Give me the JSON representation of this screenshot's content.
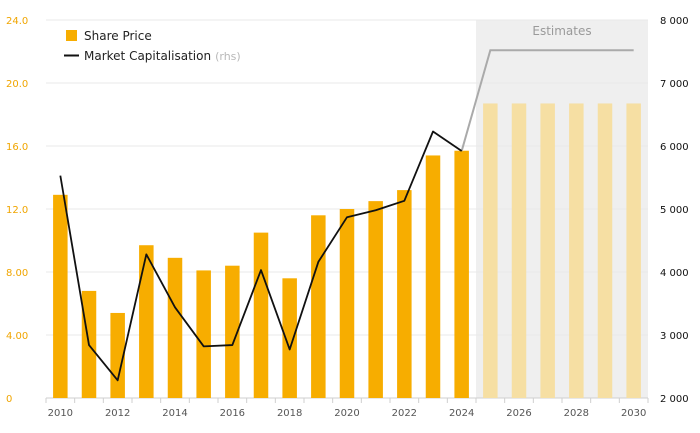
{
  "chart_data": {
    "type": "bar",
    "categories": [
      "2010",
      "2011",
      "2012",
      "2013",
      "2014",
      "2015",
      "2016",
      "2017",
      "2018",
      "2019",
      "2020",
      "2021",
      "2022",
      "2023",
      "2024",
      "2025",
      "2026",
      "2027",
      "2028",
      "2029",
      "2030"
    ],
    "x_tick_labels": [
      "2010",
      "2012",
      "2014",
      "2016",
      "2018",
      "2020",
      "2022",
      "2024",
      "2026",
      "2028",
      "2030"
    ],
    "series": [
      {
        "name": "Share Price",
        "kind": "bar",
        "axis": "left",
        "color": "#f7ad00",
        "estimate_color": "#f6dfa3",
        "values": [
          12.9,
          6.8,
          5.4,
          9.7,
          8.9,
          8.1,
          8.4,
          10.5,
          7.6,
          11.6,
          12.0,
          12.5,
          13.2,
          15.4,
          15.7,
          18.7,
          18.7,
          18.7,
          18.7,
          18.7,
          18.7
        ]
      },
      {
        "name": "Market Capitalisation",
        "name_note": "(rhs)",
        "kind": "line",
        "axis": "right",
        "color": "#111111",
        "estimate_color": "#aaaaaa",
        "x": [
          2010,
          2011,
          2012,
          2013,
          2014,
          2015,
          2016,
          2017,
          2018,
          2019,
          2020,
          2021,
          2022,
          2023,
          2024,
          2025,
          2030
        ],
        "values": [
          5530,
          2840,
          2280,
          4280,
          3440,
          2820,
          2840,
          4030,
          2770,
          4160,
          4870,
          4980,
          5130,
          6230,
          5920,
          7520,
          7520
        ]
      }
    ],
    "estimates_start_index": 15,
    "estimates_label": "Estimates",
    "y_left": {
      "ticks": [
        "0",
        "4.00",
        "8.00",
        "12.0",
        "16.0",
        "20.0",
        "24.0"
      ],
      "min": 0,
      "max": 24
    },
    "y_right": {
      "ticks": [
        "2 000",
        "3 000",
        "4 000",
        "5 000",
        "6 000",
        "7 000",
        "8 000"
      ],
      "min": 2000,
      "max": 8000
    },
    "grid": true,
    "legend": "top-left",
    "colors": {
      "left_axis": "#f0a500",
      "grid": "#e8e8e8",
      "estimates_bg": "#efefef"
    }
  }
}
